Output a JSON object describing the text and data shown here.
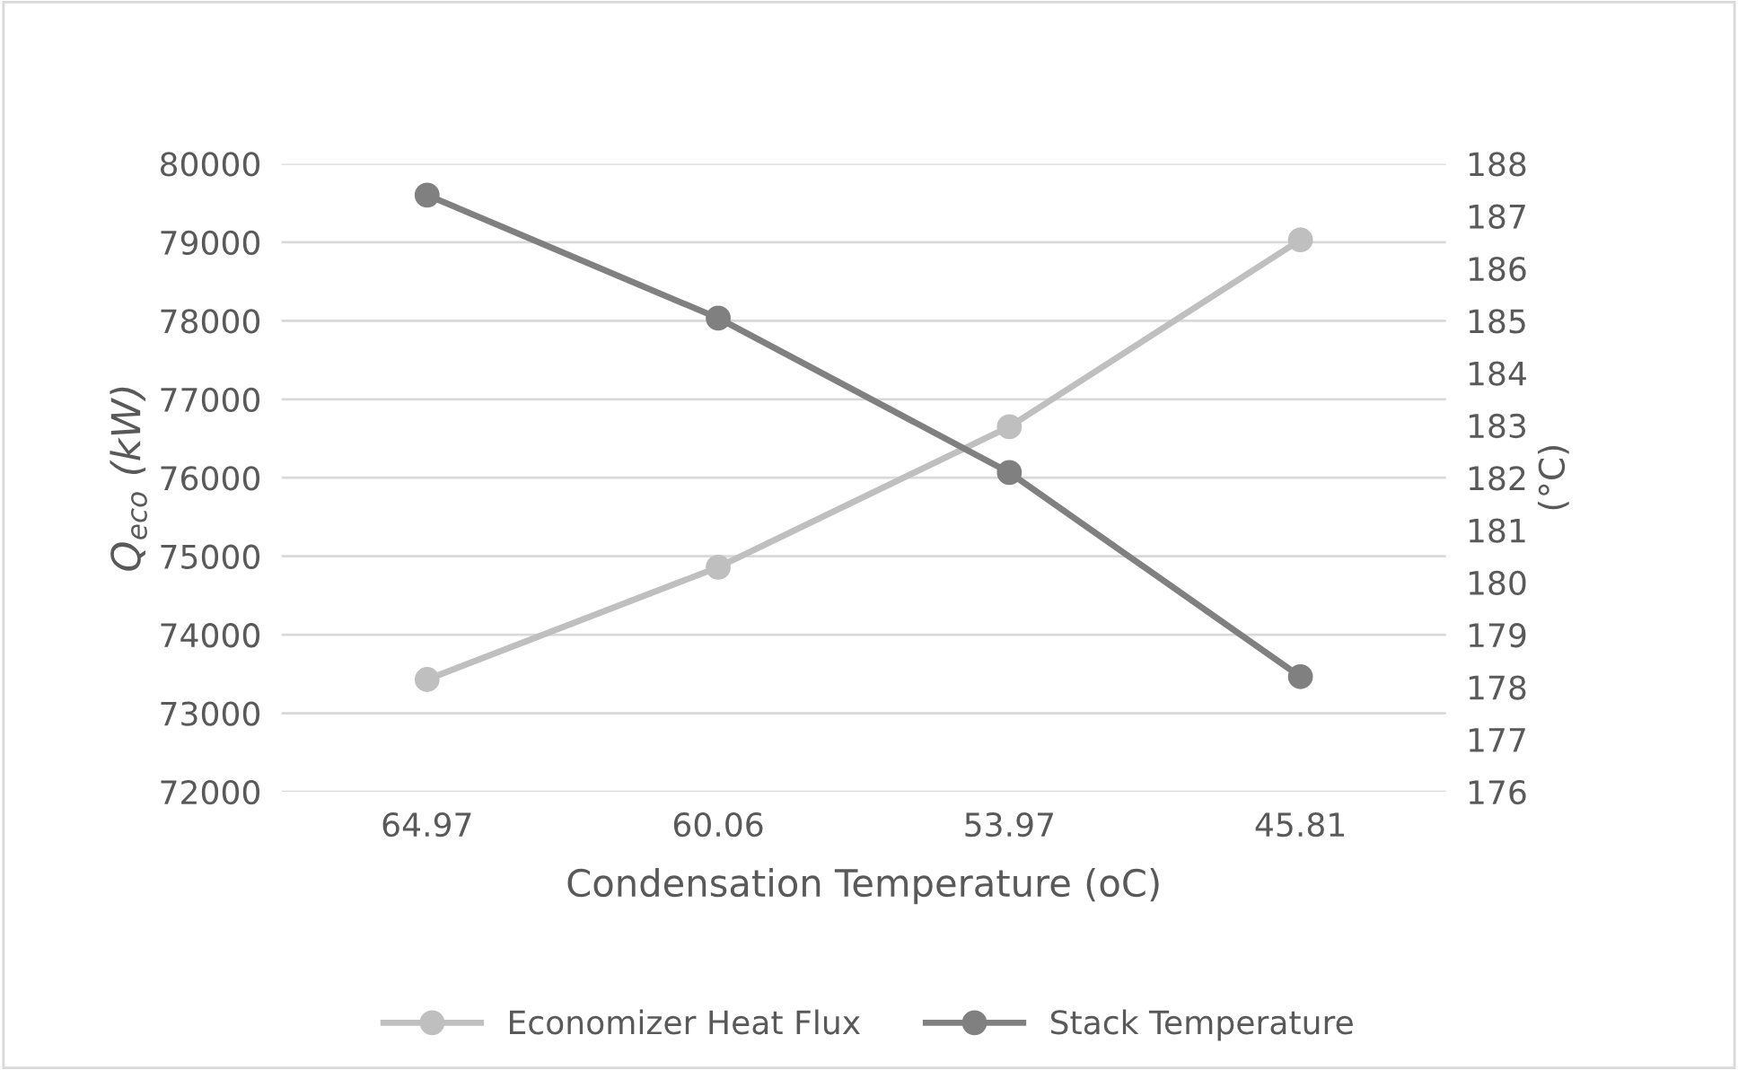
{
  "chart_data": {
    "type": "line",
    "xlabel": "Condensation Temperature (oC)",
    "ylabel": "Q$_{eco}$ (kW)",
    "y2label": "(°C)",
    "categories": [
      "64.97",
      "60.06",
      "53.97",
      "45.81"
    ],
    "series": [
      {
        "name": "Economizer Heat Flux",
        "color": "#bfbfbf",
        "values": [
          73430,
          74860,
          76650,
          79030
        ]
      },
      {
        "name": "Stack Temperature",
        "color": "#808080",
        "axis": "y2",
        "values": [
          187.4,
          185.05,
          182.1,
          178.2
        ]
      }
    ],
    "ylim": [
      72000,
      80000
    ],
    "yticks": [
      72000,
      73000,
      74000,
      75000,
      76000,
      77000,
      78000,
      79000,
      80000
    ],
    "y2lim": [
      176,
      188
    ],
    "y2ticks": [
      176,
      177,
      178,
      179,
      180,
      181,
      182,
      183,
      184,
      185,
      186,
      187,
      188
    ],
    "grid": "y",
    "legend": "bottom",
    "marker": "circle",
    "line_style": "solid"
  }
}
